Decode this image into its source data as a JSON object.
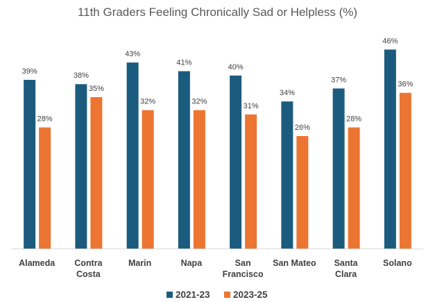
{
  "chart_data": {
    "type": "bar",
    "title": "11th Graders Feeling Chronically Sad or Helpless (%)",
    "categories": [
      [
        "Alameda"
      ],
      [
        "Contra",
        "Costa"
      ],
      [
        "Marin"
      ],
      [
        "Napa"
      ],
      [
        "San",
        "Francisco"
      ],
      [
        "San Mateo"
      ],
      [
        "Santa",
        "Clara"
      ],
      [
        "Solano"
      ]
    ],
    "series": [
      {
        "name": "2021-23",
        "color": "#1b5c7e",
        "values": [
          39,
          38,
          43,
          41,
          40,
          34,
          37,
          46
        ]
      },
      {
        "name": "2023-25",
        "color": "#ec7532",
        "values": [
          28,
          35,
          32,
          32,
          31,
          26,
          28,
          36
        ]
      }
    ],
    "value_suffix": "%",
    "ylim": [
      0,
      52
    ],
    "xlabel": "",
    "ylabel": "",
    "grid": false,
    "legend_position": "bottom"
  }
}
